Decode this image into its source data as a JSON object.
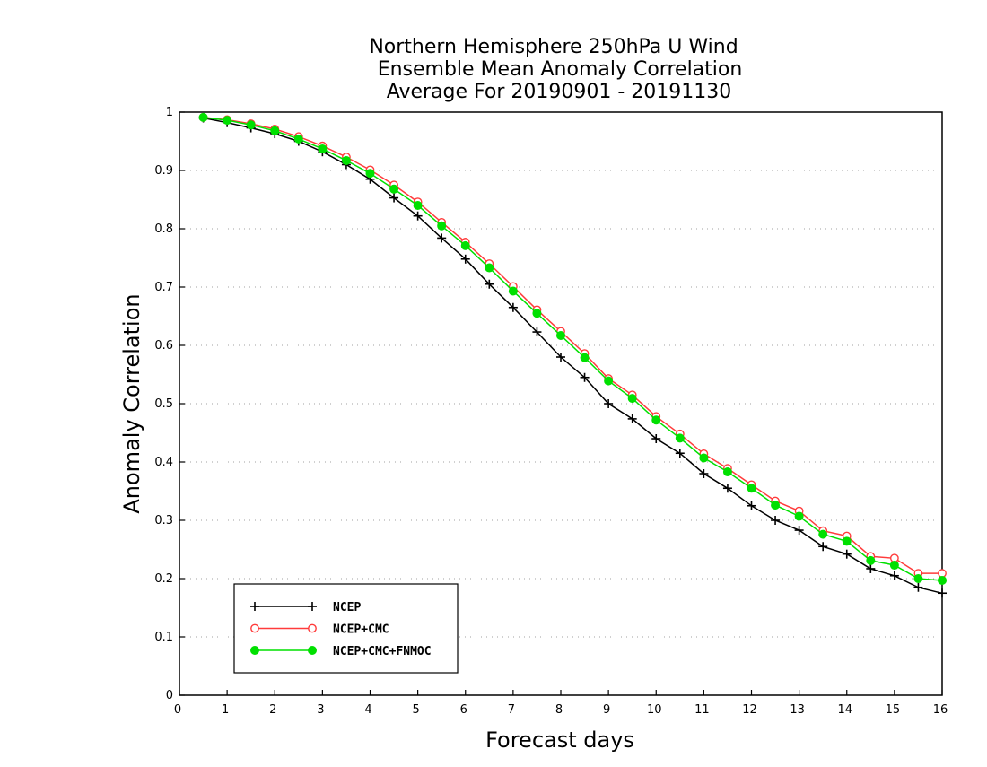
{
  "chart_data": {
    "type": "line",
    "title": [
      "Northern Hemisphere 250hPa U Wind",
      "Ensemble Mean Anomaly Correlation",
      "Average For 20190901 - 20191130"
    ],
    "xlabel": "Forecast days",
    "ylabel": "Anomaly Correlation",
    "xlim": [
      0,
      16
    ],
    "ylim": [
      0,
      1
    ],
    "x_ticks": [
      "0",
      "1",
      "2",
      "3",
      "4",
      "5",
      "6",
      "7",
      "8",
      "9",
      "10",
      "11",
      "12",
      "13",
      "14",
      "15",
      "16"
    ],
    "y_ticks": [
      "0",
      "0.1",
      "0.2",
      "0.3",
      "0.4",
      "0.5",
      "0.6",
      "0.7",
      "0.8",
      "0.9",
      "1"
    ],
    "grid": "horizontal dotted",
    "legend_position": "bottom-left",
    "x": [
      0.5,
      1,
      1.5,
      2,
      2.5,
      3,
      3.5,
      4,
      4.5,
      5,
      5.5,
      6,
      6.5,
      7,
      7.5,
      8,
      8.5,
      9,
      9.5,
      10,
      10.5,
      11,
      11.5,
      12,
      12.5,
      13,
      13.5,
      14,
      14.5,
      15,
      15.5,
      16
    ],
    "series": [
      {
        "name": "NCEP",
        "color": "#000000",
        "marker": "plus",
        "values": [
          0.99,
          0.982,
          0.973,
          0.963,
          0.95,
          0.932,
          0.91,
          0.885,
          0.853,
          0.822,
          0.784,
          0.748,
          0.705,
          0.665,
          0.623,
          0.58,
          0.545,
          0.5,
          0.474,
          0.44,
          0.415,
          0.38,
          0.355,
          0.325,
          0.3,
          0.283,
          0.255,
          0.242,
          0.217,
          0.205,
          0.185,
          0.175
        ]
      },
      {
        "name": "NCEP+CMC",
        "color": "#ff3b3b",
        "marker": "open-circle",
        "values": [
          0.991,
          0.987,
          0.98,
          0.971,
          0.958,
          0.942,
          0.923,
          0.901,
          0.875,
          0.846,
          0.811,
          0.777,
          0.74,
          0.701,
          0.661,
          0.624,
          0.586,
          0.543,
          0.515,
          0.478,
          0.448,
          0.414,
          0.389,
          0.361,
          0.333,
          0.316,
          0.282,
          0.273,
          0.238,
          0.235,
          0.209,
          0.209
        ]
      },
      {
        "name": "NCEP+CMC+FNMOC",
        "color": "#00e000",
        "marker": "filled-circle",
        "values": [
          0.991,
          0.986,
          0.978,
          0.968,
          0.954,
          0.937,
          0.917,
          0.895,
          0.868,
          0.84,
          0.805,
          0.771,
          0.733,
          0.693,
          0.655,
          0.617,
          0.579,
          0.539,
          0.509,
          0.472,
          0.441,
          0.407,
          0.383,
          0.355,
          0.326,
          0.307,
          0.276,
          0.264,
          0.231,
          0.223,
          0.2,
          0.197
        ]
      }
    ]
  }
}
